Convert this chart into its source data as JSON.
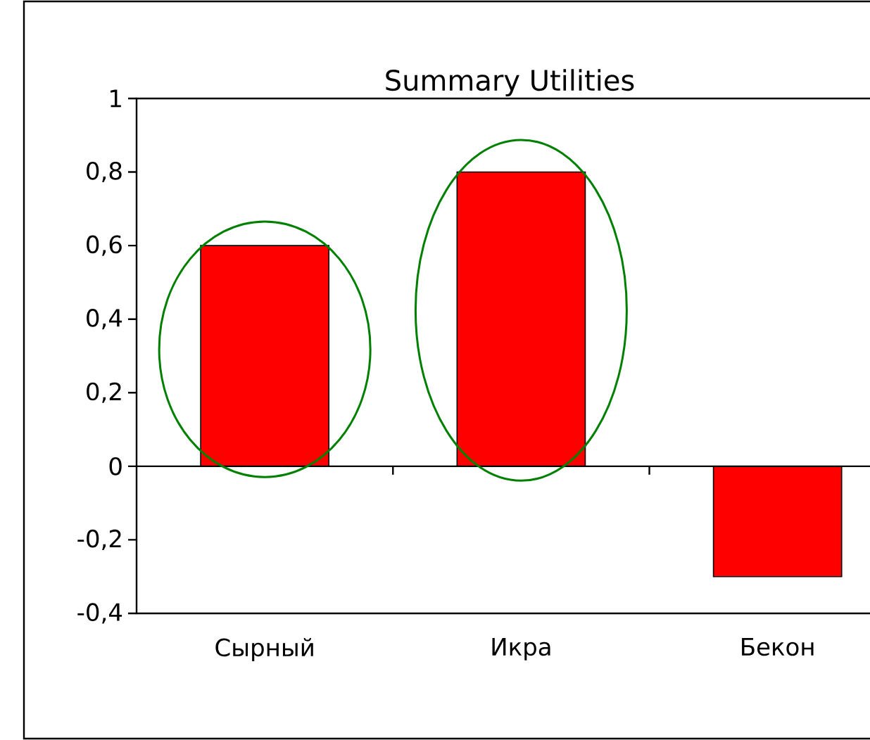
{
  "chart_data": {
    "type": "bar",
    "title": "Summary Utilities",
    "categories": [
      "Сырный",
      "Икра",
      "Бекон"
    ],
    "values": [
      0.6,
      0.8,
      -0.3
    ],
    "color": "#ff0000",
    "ylim": [
      -0.4,
      1
    ],
    "yticks": [
      {
        "value": -0.4,
        "label": "-0,4"
      },
      {
        "value": -0.2,
        "label": "-0,2"
      },
      {
        "value": 0,
        "label": "0"
      },
      {
        "value": 0.2,
        "label": "0,2"
      },
      {
        "value": 0.4,
        "label": "0,4"
      },
      {
        "value": 0.6,
        "label": "0,6"
      },
      {
        "value": 0.8,
        "label": "0,8"
      },
      {
        "value": 1,
        "label": "1"
      }
    ],
    "ref_lines": [
      {
        "axis": "y",
        "value": 0
      }
    ]
  }
}
